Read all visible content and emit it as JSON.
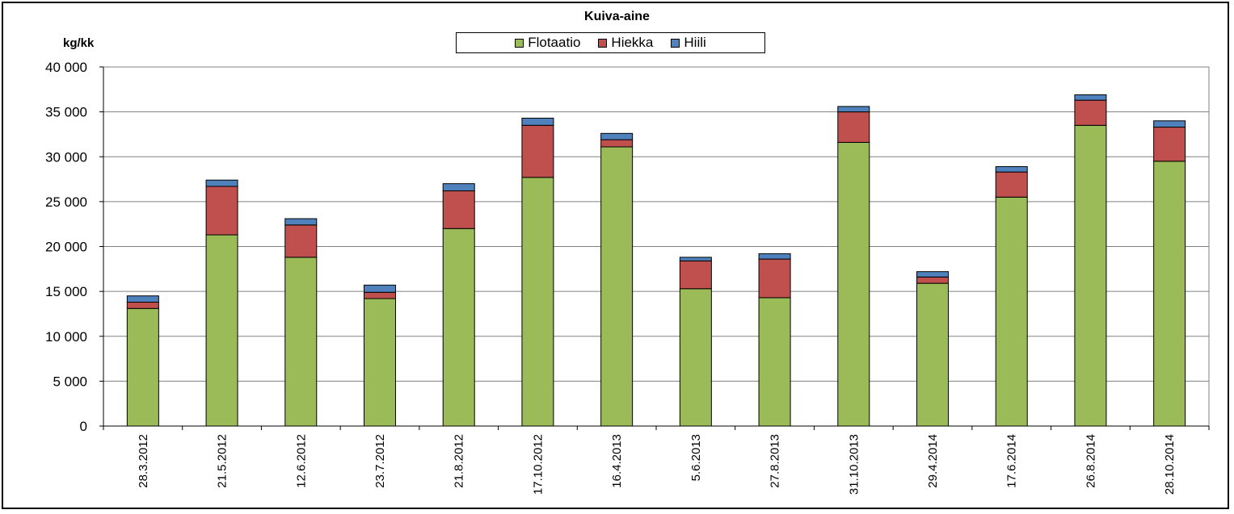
{
  "chart_data": {
    "type": "bar",
    "stacked": true,
    "title": "Kuiva-aine",
    "ylabel": "kg/kk",
    "xlabel": "",
    "ylim": [
      0,
      40000
    ],
    "yticks": [
      0,
      5000,
      10000,
      15000,
      20000,
      25000,
      30000,
      35000,
      40000
    ],
    "ytick_labels": [
      "0",
      "5 000",
      "10 000",
      "15 000",
      "20 000",
      "25 000",
      "30 000",
      "35 000",
      "40 000"
    ],
    "grid": true,
    "legend_position": "top-center",
    "categories": [
      "28.3.2012",
      "21.5.2012",
      "12.6.2012",
      "23.7.2012",
      "21.8.2012",
      "17.10.2012",
      "16.4.2013",
      "5.6.2013",
      "27.8.2013",
      "31.10.2013",
      "29.4.2014",
      "17.6.2014",
      "26.8.2014",
      "28.10.2014"
    ],
    "series": [
      {
        "name": "Flotaatio",
        "color": "#9bbb59",
        "values": [
          13100,
          21300,
          18800,
          14200,
          22000,
          27700,
          31100,
          15300,
          14300,
          31600,
          15900,
          25500,
          33500,
          29500
        ]
      },
      {
        "name": "Hiekka",
        "color": "#c0504d",
        "values": [
          700,
          5400,
          3600,
          700,
          4200,
          5800,
          800,
          3100,
          4300,
          3400,
          700,
          2800,
          2800,
          3800
        ]
      },
      {
        "name": "Hiili",
        "color": "#4f81bd",
        "values": [
          700,
          700,
          700,
          800,
          800,
          800,
          700,
          400,
          600,
          600,
          600,
          600,
          600,
          700
        ]
      }
    ]
  }
}
